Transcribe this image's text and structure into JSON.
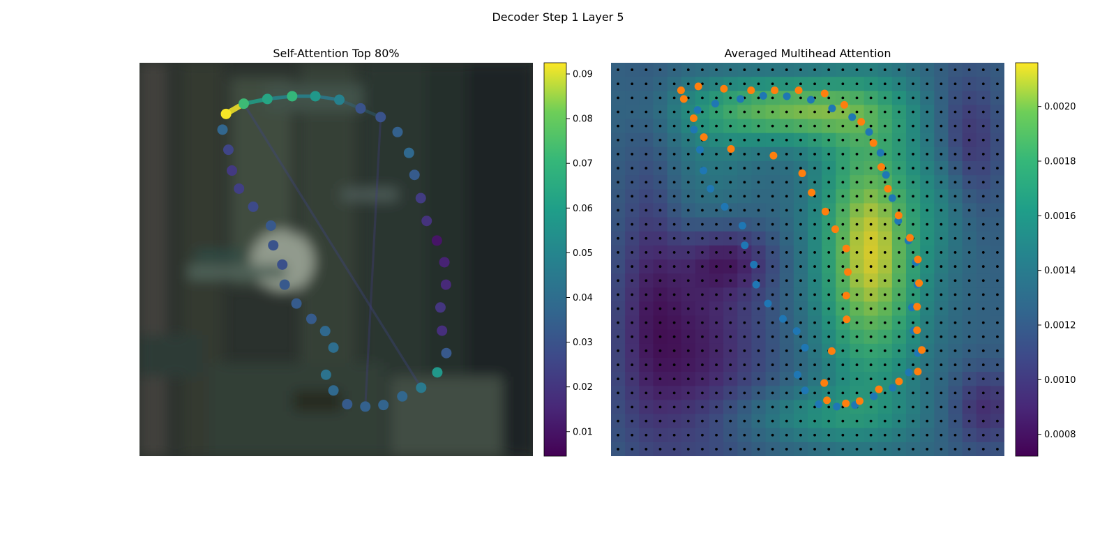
{
  "figure": {
    "suptitle": "Decoder Step 1 Layer 5"
  },
  "chart_data": [
    {
      "type": "scatter",
      "title": "Self-Attention Top 80%",
      "xlabel": "",
      "ylabel": "",
      "axes_visible": false,
      "background": "blurred photograph (dim, greenish-gray)",
      "colormap": "viridis",
      "colorbar": {
        "ticks": [
          0.01,
          0.02,
          0.03,
          0.04,
          0.05,
          0.06,
          0.07,
          0.08,
          0.09
        ],
        "range": [
          0.0045,
          0.0925
        ]
      },
      "points": [
        {
          "x": 0.22,
          "y": 0.13,
          "v": 0.092
        },
        {
          "x": 0.265,
          "y": 0.104,
          "v": 0.072
        },
        {
          "x": 0.325,
          "y": 0.092,
          "v": 0.063
        },
        {
          "x": 0.388,
          "y": 0.085,
          "v": 0.07
        },
        {
          "x": 0.447,
          "y": 0.085,
          "v": 0.057
        },
        {
          "x": 0.508,
          "y": 0.094,
          "v": 0.048
        },
        {
          "x": 0.562,
          "y": 0.116,
          "v": 0.03
        },
        {
          "x": 0.613,
          "y": 0.138,
          "v": 0.03
        },
        {
          "x": 0.656,
          "y": 0.176,
          "v": 0.035
        },
        {
          "x": 0.685,
          "y": 0.229,
          "v": 0.038
        },
        {
          "x": 0.699,
          "y": 0.285,
          "v": 0.033
        },
        {
          "x": 0.715,
          "y": 0.344,
          "v": 0.022
        },
        {
          "x": 0.73,
          "y": 0.402,
          "v": 0.019
        },
        {
          "x": 0.756,
          "y": 0.452,
          "v": 0.01
        },
        {
          "x": 0.775,
          "y": 0.507,
          "v": 0.014
        },
        {
          "x": 0.779,
          "y": 0.564,
          "v": 0.016
        },
        {
          "x": 0.765,
          "y": 0.622,
          "v": 0.02
        },
        {
          "x": 0.769,
          "y": 0.681,
          "v": 0.018
        },
        {
          "x": 0.78,
          "y": 0.738,
          "v": 0.032
        },
        {
          "x": 0.757,
          "y": 0.787,
          "v": 0.057
        },
        {
          "x": 0.716,
          "y": 0.826,
          "v": 0.045
        },
        {
          "x": 0.668,
          "y": 0.848,
          "v": 0.037
        },
        {
          "x": 0.62,
          "y": 0.87,
          "v": 0.036
        },
        {
          "x": 0.574,
          "y": 0.874,
          "v": 0.035
        },
        {
          "x": 0.528,
          "y": 0.868,
          "v": 0.033
        },
        {
          "x": 0.493,
          "y": 0.833,
          "v": 0.038
        },
        {
          "x": 0.474,
          "y": 0.793,
          "v": 0.042
        },
        {
          "x": 0.493,
          "y": 0.724,
          "v": 0.04
        },
        {
          "x": 0.472,
          "y": 0.682,
          "v": 0.038
        },
        {
          "x": 0.437,
          "y": 0.651,
          "v": 0.033
        },
        {
          "x": 0.399,
          "y": 0.612,
          "v": 0.033
        },
        {
          "x": 0.369,
          "y": 0.564,
          "v": 0.032
        },
        {
          "x": 0.363,
          "y": 0.513,
          "v": 0.029
        },
        {
          "x": 0.34,
          "y": 0.464,
          "v": 0.03
        },
        {
          "x": 0.334,
          "y": 0.414,
          "v": 0.032
        },
        {
          "x": 0.289,
          "y": 0.366,
          "v": 0.027
        },
        {
          "x": 0.253,
          "y": 0.32,
          "v": 0.023
        },
        {
          "x": 0.235,
          "y": 0.274,
          "v": 0.021
        },
        {
          "x": 0.226,
          "y": 0.221,
          "v": 0.025
        },
        {
          "x": 0.211,
          "y": 0.17,
          "v": 0.037
        }
      ],
      "top_links": [
        {
          "from": 0,
          "to": 1,
          "w": 0.092
        },
        {
          "from": 1,
          "to": 2,
          "w": 0.06
        },
        {
          "from": 2,
          "to": 3,
          "w": 0.05
        },
        {
          "from": 3,
          "to": 4,
          "w": 0.048
        },
        {
          "from": 4,
          "to": 5,
          "w": 0.045
        },
        {
          "from": 5,
          "to": 7,
          "w": 0.04
        },
        {
          "from": 1,
          "to": 20,
          "w": 0.025
        },
        {
          "from": 7,
          "to": 23,
          "w": 0.022
        }
      ]
    },
    {
      "type": "heatmap",
      "title": "Averaged Multihead Attention",
      "xlabel": "",
      "ylabel": "",
      "axes_visible": false,
      "colormap": "viridis",
      "grid": {
        "cols": 28,
        "rows": 28,
        "markers": "black dots at cell centers"
      },
      "colorbar": {
        "ticks": [
          0.0008,
          0.001,
          0.0012,
          0.0014,
          0.0016,
          0.0018,
          0.002
        ],
        "range": [
          0.00072,
          0.00216
        ]
      },
      "heatmap_model": {
        "base": 0.00125,
        "bumps": [
          {
            "x": 0.66,
            "y": 0.48,
            "sx": 0.1,
            "sy": 0.25,
            "a": 0.0009
          },
          {
            "x": 0.45,
            "y": 0.12,
            "sx": 0.18,
            "sy": 0.06,
            "a": 0.0007
          },
          {
            "x": 0.52,
            "y": 0.9,
            "sx": 0.17,
            "sy": 0.05,
            "a": 0.0003
          },
          {
            "x": 0.25,
            "y": 0.3,
            "sx": 0.1,
            "sy": 0.15,
            "a": 0.0002
          },
          {
            "x": 0.85,
            "y": 0.32,
            "sx": 0.05,
            "sy": 0.12,
            "a": 0.0002
          },
          {
            "x": 0.2,
            "y": 0.72,
            "sx": 0.13,
            "sy": 0.2,
            "a": -0.00045
          },
          {
            "x": 0.3,
            "y": 0.5,
            "sx": 0.08,
            "sy": 0.06,
            "a": -0.00035
          },
          {
            "x": 0.9,
            "y": 0.2,
            "sx": 0.06,
            "sy": 0.12,
            "a": -0.00035
          },
          {
            "x": 0.95,
            "y": 0.88,
            "sx": 0.06,
            "sy": 0.07,
            "a": -0.00035
          },
          {
            "x": 0.1,
            "y": 0.5,
            "sx": 0.05,
            "sy": 0.3,
            "a": -0.0002
          }
        ]
      },
      "series": [
        {
          "color": "#1f77b4",
          "points": [
            {
              "x": 0.22,
              "y": 0.12
            },
            {
              "x": 0.265,
              "y": 0.104
            },
            {
              "x": 0.329,
              "y": 0.092
            },
            {
              "x": 0.387,
              "y": 0.084
            },
            {
              "x": 0.447,
              "y": 0.085
            },
            {
              "x": 0.508,
              "y": 0.094
            },
            {
              "x": 0.562,
              "y": 0.116
            },
            {
              "x": 0.613,
              "y": 0.138
            },
            {
              "x": 0.656,
              "y": 0.176
            },
            {
              "x": 0.685,
              "y": 0.229
            },
            {
              "x": 0.699,
              "y": 0.285
            },
            {
              "x": 0.715,
              "y": 0.344
            },
            {
              "x": 0.73,
              "y": 0.402
            },
            {
              "x": 0.756,
              "y": 0.452
            },
            {
              "x": 0.775,
              "y": 0.507
            },
            {
              "x": 0.779,
              "y": 0.564
            },
            {
              "x": 0.765,
              "y": 0.622
            },
            {
              "x": 0.769,
              "y": 0.681
            },
            {
              "x": 0.78,
              "y": 0.738
            },
            {
              "x": 0.757,
              "y": 0.787
            },
            {
              "x": 0.716,
              "y": 0.826
            },
            {
              "x": 0.668,
              "y": 0.848
            },
            {
              "x": 0.62,
              "y": 0.87
            },
            {
              "x": 0.574,
              "y": 0.874
            },
            {
              "x": 0.528,
              "y": 0.868
            },
            {
              "x": 0.493,
              "y": 0.833
            },
            {
              "x": 0.474,
              "y": 0.793
            },
            {
              "x": 0.493,
              "y": 0.724
            },
            {
              "x": 0.472,
              "y": 0.682
            },
            {
              "x": 0.437,
              "y": 0.651
            },
            {
              "x": 0.399,
              "y": 0.612
            },
            {
              "x": 0.369,
              "y": 0.564
            },
            {
              "x": 0.363,
              "y": 0.513
            },
            {
              "x": 0.34,
              "y": 0.464
            },
            {
              "x": 0.334,
              "y": 0.414
            },
            {
              "x": 0.289,
              "y": 0.366
            },
            {
              "x": 0.253,
              "y": 0.32
            },
            {
              "x": 0.235,
              "y": 0.274
            },
            {
              "x": 0.226,
              "y": 0.221
            },
            {
              "x": 0.211,
              "y": 0.17
            }
          ]
        },
        {
          "color": "#ff7f0e",
          "points": [
            {
              "x": 0.178,
              "y": 0.07
            },
            {
              "x": 0.222,
              "y": 0.06
            },
            {
              "x": 0.287,
              "y": 0.066
            },
            {
              "x": 0.356,
              "y": 0.07
            },
            {
              "x": 0.416,
              "y": 0.07
            },
            {
              "x": 0.477,
              "y": 0.07
            },
            {
              "x": 0.543,
              "y": 0.078
            },
            {
              "x": 0.593,
              "y": 0.107
            },
            {
              "x": 0.636,
              "y": 0.15
            },
            {
              "x": 0.667,
              "y": 0.204
            },
            {
              "x": 0.687,
              "y": 0.265
            },
            {
              "x": 0.704,
              "y": 0.32
            },
            {
              "x": 0.731,
              "y": 0.388
            },
            {
              "x": 0.76,
              "y": 0.445
            },
            {
              "x": 0.78,
              "y": 0.5
            },
            {
              "x": 0.783,
              "y": 0.56
            },
            {
              "x": 0.778,
              "y": 0.62
            },
            {
              "x": 0.778,
              "y": 0.68
            },
            {
              "x": 0.79,
              "y": 0.73
            },
            {
              "x": 0.78,
              "y": 0.785
            },
            {
              "x": 0.732,
              "y": 0.81
            },
            {
              "x": 0.681,
              "y": 0.83
            },
            {
              "x": 0.632,
              "y": 0.86
            },
            {
              "x": 0.597,
              "y": 0.866
            },
            {
              "x": 0.549,
              "y": 0.858
            },
            {
              "x": 0.542,
              "y": 0.814
            },
            {
              "x": 0.561,
              "y": 0.733
            },
            {
              "x": 0.599,
              "y": 0.652
            },
            {
              "x": 0.598,
              "y": 0.592
            },
            {
              "x": 0.602,
              "y": 0.532
            },
            {
              "x": 0.598,
              "y": 0.472
            },
            {
              "x": 0.57,
              "y": 0.423
            },
            {
              "x": 0.545,
              "y": 0.378
            },
            {
              "x": 0.51,
              "y": 0.33
            },
            {
              "x": 0.486,
              "y": 0.281
            },
            {
              "x": 0.413,
              "y": 0.236
            },
            {
              "x": 0.305,
              "y": 0.219
            },
            {
              "x": 0.236,
              "y": 0.189
            },
            {
              "x": 0.21,
              "y": 0.141
            },
            {
              "x": 0.185,
              "y": 0.092
            }
          ]
        }
      ]
    }
  ]
}
